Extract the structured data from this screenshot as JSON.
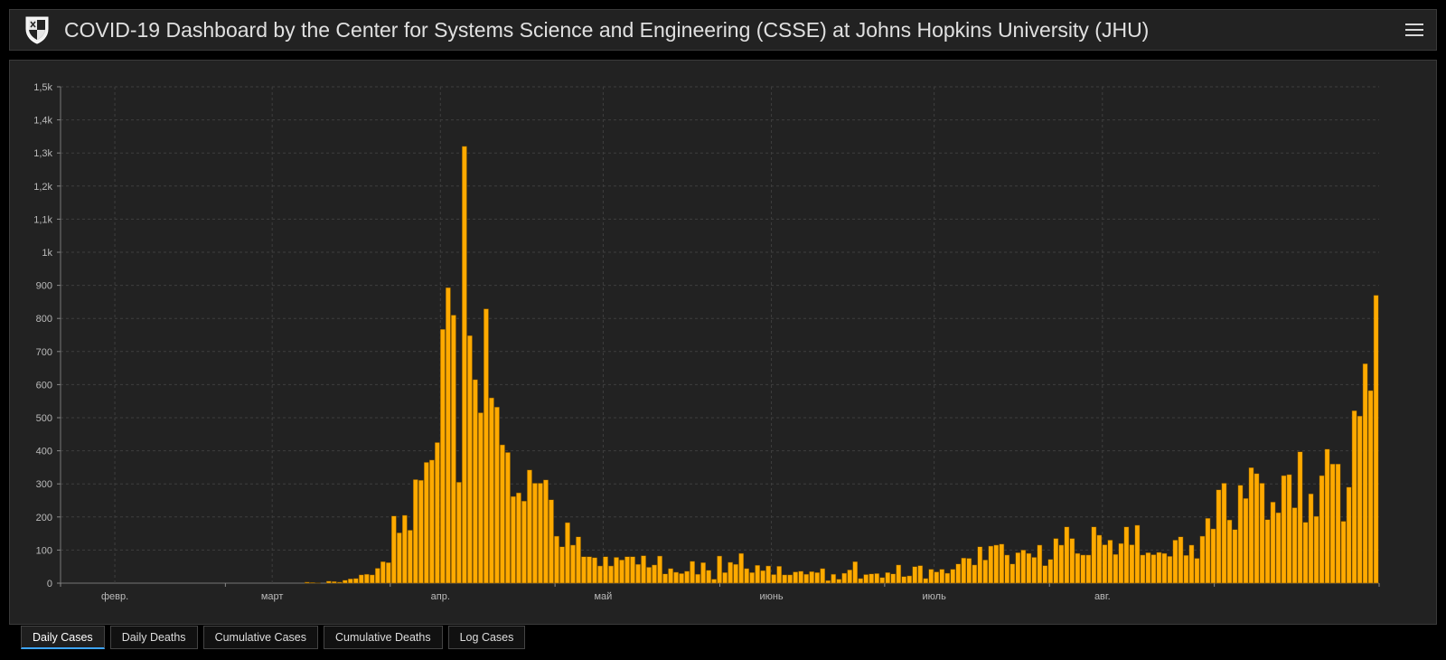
{
  "header": {
    "title": "COVID-19 Dashboard by the Center for Systems Science and Engineering (CSSE) at Johns Hopkins University (JHU)",
    "logo_icon": "jhu-shield-icon",
    "menu_icon": "hamburger-menu-icon"
  },
  "tabs": [
    {
      "label": "Daily Cases",
      "active": true
    },
    {
      "label": "Daily Deaths",
      "active": false
    },
    {
      "label": "Cumulative Cases",
      "active": false
    },
    {
      "label": "Cumulative Deaths",
      "active": false
    },
    {
      "label": "Log Cases",
      "active": false
    }
  ],
  "colors": {
    "bar": "#ffaa00",
    "background": "#222222",
    "accent": "#3da5ff"
  },
  "chart_data": {
    "type": "bar",
    "ylim": [
      0,
      1500
    ],
    "yticks": [
      {
        "value": 0,
        "label": "0"
      },
      {
        "value": 100,
        "label": "100"
      },
      {
        "value": 200,
        "label": "200"
      },
      {
        "value": 300,
        "label": "300"
      },
      {
        "value": 400,
        "label": "400"
      },
      {
        "value": 500,
        "label": "500"
      },
      {
        "value": 600,
        "label": "600"
      },
      {
        "value": 700,
        "label": "700"
      },
      {
        "value": 800,
        "label": "800"
      },
      {
        "value": 900,
        "label": "900"
      },
      {
        "value": 1000,
        "label": "1k"
      },
      {
        "value": 1100,
        "label": "1,1k"
      },
      {
        "value": 1200,
        "label": "1,2k"
      },
      {
        "value": 1300,
        "label": "1,3k"
      },
      {
        "value": 1400,
        "label": "1,4k"
      },
      {
        "value": 1500,
        "label": "1,5k"
      }
    ],
    "xticks": [
      {
        "index": 10,
        "label": "февр."
      },
      {
        "index": 39,
        "label": "март"
      },
      {
        "index": 70,
        "label": "апр."
      },
      {
        "index": 100,
        "label": "май"
      },
      {
        "index": 131,
        "label": "июнь"
      },
      {
        "index": 161,
        "label": "июль"
      },
      {
        "index": 192,
        "label": "авг."
      }
    ],
    "grid": true,
    "values": [
      0,
      0,
      0,
      0,
      0,
      0,
      0,
      0,
      0,
      0,
      0,
      0,
      0,
      0,
      0,
      0,
      0,
      0,
      0,
      0,
      0,
      0,
      0,
      0,
      0,
      0,
      0,
      0,
      0,
      0,
      0,
      0,
      0,
      0,
      0,
      0,
      0,
      0,
      0,
      0,
      0,
      0,
      0,
      0,
      0,
      3,
      2,
      1,
      0,
      6,
      5,
      3,
      9,
      13,
      14,
      25,
      27,
      25,
      45,
      65,
      62,
      203,
      152,
      205,
      160,
      313,
      311,
      365,
      372,
      425,
      767,
      893,
      810,
      305,
      1320,
      748,
      615,
      515,
      829,
      560,
      532,
      418,
      395,
      262,
      273,
      248,
      342,
      302,
      302,
      312,
      252,
      142,
      110,
      183,
      115,
      140,
      80,
      80,
      77,
      52,
      80,
      52,
      78,
      70,
      80,
      80,
      57,
      83,
      48,
      55,
      82,
      28,
      44,
      33,
      29,
      36,
      66,
      27,
      62,
      39,
      12,
      82,
      32,
      63,
      57,
      90,
      44,
      32,
      54,
      38,
      52,
      26,
      51,
      25,
      25,
      34,
      36,
      27,
      35,
      32,
      44,
      8,
      27,
      12,
      30,
      40,
      65,
      14,
      26,
      28,
      29,
      17,
      32,
      28,
      55,
      20,
      22,
      50,
      53,
      14,
      42,
      34,
      42,
      30,
      42,
      58,
      76,
      75,
      55,
      110,
      70,
      112,
      115,
      118,
      85,
      58,
      92,
      100,
      90,
      78,
      115,
      53,
      72,
      135,
      115,
      170,
      135,
      90,
      85,
      85,
      170,
      145,
      116,
      130,
      87,
      120,
      170,
      116,
      175,
      85,
      92,
      86,
      93,
      90,
      81,
      130,
      140,
      84,
      115,
      75,
      142,
      196,
      164,
      282,
      302,
      191,
      162,
      296,
      256,
      349,
      331,
      302,
      192,
      245,
      213,
      325,
      328,
      228,
      397,
      184,
      270,
      202,
      325,
      405,
      360,
      360,
      187,
      290,
      521,
      505,
      663,
      582,
      870
    ]
  }
}
